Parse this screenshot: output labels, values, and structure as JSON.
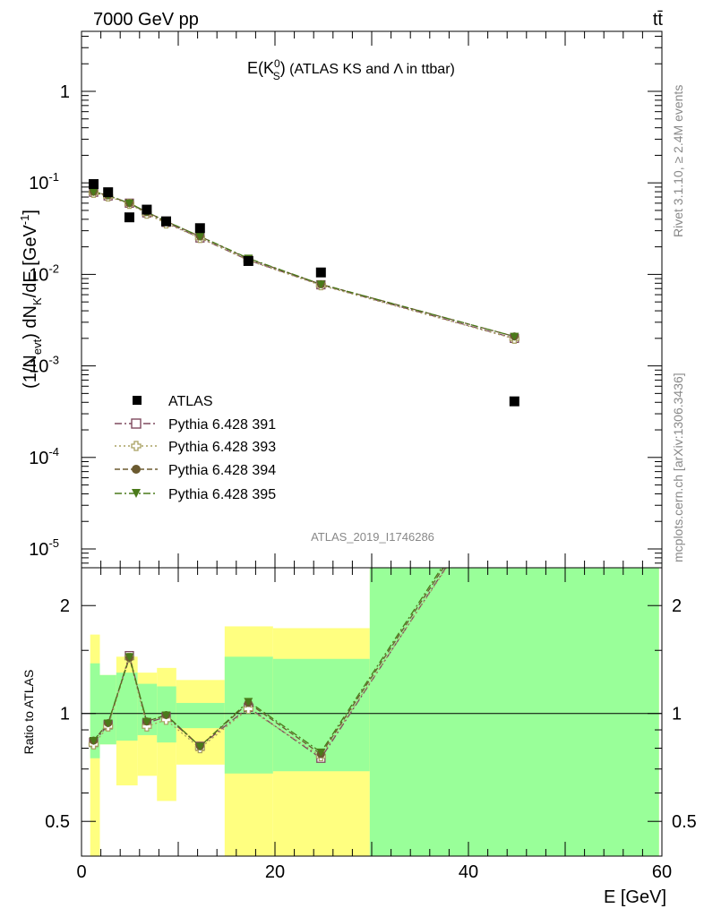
{
  "header": {
    "energy_label": "7000 GeV pp",
    "process_label": "tt̄"
  },
  "side_labels": {
    "rivet": "Rivet 3.1.10, ≥ 2.4M events",
    "mcplots": "mcplots.cern.ch [arXiv:1306.3436]"
  },
  "analysis_tag": "ATLAS_2019_I1746286",
  "colors": {
    "atlas": "#000000",
    "p391": "#7f4a5f",
    "p393": "#a8a060",
    "p394": "#6b5a30",
    "p395": "#4a7a1a",
    "band_inner": "#99ff99",
    "band_outer": "#ffff80"
  },
  "chart_data": [
    {
      "type": "scatter",
      "title_parts": {
        "e": "E(K",
        "sup": "0",
        "sub": "S",
        "close": ")",
        "rest": " (ATLAS KS and Λ in ttbar)"
      },
      "ylabel_parts": {
        "a": "(1/N",
        "b": "evt",
        "c": ") dN",
        "d": "K",
        "e": "/dE [GeV",
        "f": "-1",
        "g": "]"
      },
      "yscale": "log",
      "ylim": [
        7e-06,
        4
      ],
      "xlim": [
        0,
        60
      ],
      "yticklabels": [
        {
          "base": "1",
          "exp": "",
          "v": 1
        },
        {
          "base": "10",
          "exp": "-1",
          "v": 0.1
        },
        {
          "base": "10",
          "exp": "-2",
          "v": 0.01
        },
        {
          "base": "10",
          "exp": "-3",
          "v": 0.001
        },
        {
          "base": "10",
          "exp": "-4",
          "v": 0.0001
        },
        {
          "base": "10",
          "exp": "-5",
          "v": 1e-05
        }
      ],
      "x": [
        1.25,
        2.75,
        4.95,
        6.75,
        8.75,
        12.25,
        17.25,
        24.75,
        44.75
      ],
      "series": [
        {
          "name": "ATLAS",
          "marker": "filled-square",
          "values": [
            0.097,
            0.079,
            0.042,
            0.051,
            0.038,
            0.032,
            0.014,
            0.0105,
            0.00041
          ]
        },
        {
          "name": "Pythia 6.428 391",
          "marker": "open-square",
          "values": [
            0.079,
            0.072,
            0.06,
            0.047,
            0.037,
            0.025,
            0.0143,
            0.0077,
            0.002
          ]
        },
        {
          "name": "Pythia 6.428 393",
          "marker": "open-cross",
          "values": [
            0.078,
            0.071,
            0.059,
            0.046,
            0.036,
            0.025,
            0.0142,
            0.0076,
            0.00198
          ]
        },
        {
          "name": "Pythia 6.428 394",
          "marker": "filled-circle",
          "values": [
            0.08,
            0.073,
            0.06,
            0.048,
            0.038,
            0.026,
            0.0148,
            0.0078,
            0.0021
          ]
        },
        {
          "name": "Pythia 6.428 395",
          "marker": "filled-triangle-down",
          "values": [
            0.08,
            0.073,
            0.06,
            0.048,
            0.038,
            0.026,
            0.015,
            0.0078,
            0.0021
          ]
        }
      ]
    },
    {
      "type": "line",
      "ylabel": "Ratio to ATLAS",
      "xlabel": "E [GeV]",
      "yscale": "log",
      "ylim": [
        0.4,
        2.55
      ],
      "xlim": [
        0,
        60
      ],
      "xticklabels": [
        "0",
        "20",
        "40",
        "60"
      ],
      "yticklabels": [
        "0.5",
        "1",
        "2"
      ],
      "bins": [
        {
          "lo": 0.9,
          "hi": 1.9,
          "inner": [
            0.75,
            1.38
          ],
          "outer": [
            0.36,
            1.66
          ]
        },
        {
          "lo": 1.9,
          "hi": 3.6,
          "inner": [
            0.82,
            1.28
          ],
          "outer": [
            0.82,
            1.28
          ]
        },
        {
          "lo": 3.6,
          "hi": 5.8,
          "inner": [
            0.84,
            1.3
          ],
          "outer": [
            0.63,
            1.44
          ]
        },
        {
          "lo": 5.8,
          "hi": 7.8,
          "inner": [
            0.87,
            1.21
          ],
          "outer": [
            0.67,
            1.3
          ]
        },
        {
          "lo": 7.8,
          "hi": 9.8,
          "inner": [
            0.83,
            1.19
          ],
          "outer": [
            0.57,
            1.34
          ]
        },
        {
          "lo": 9.8,
          "hi": 14.8,
          "inner": [
            0.91,
            1.07
          ],
          "outer": [
            0.72,
            1.24
          ]
        },
        {
          "lo": 14.8,
          "hi": 19.8,
          "inner": [
            0.68,
            1.44
          ],
          "outer": [
            0.3,
            1.75
          ]
        },
        {
          "lo": 19.8,
          "hi": 29.8,
          "inner": [
            0.69,
            1.42
          ],
          "outer": [
            0.3,
            1.73
          ]
        },
        {
          "lo": 29.8,
          "hi": 59.7,
          "inner": [
            0.3,
            3.0
          ],
          "outer": [
            0.3,
            3.0
          ]
        }
      ],
      "series": [
        {
          "name": "Pythia 6.428 391",
          "values": [
            0.83,
            0.93,
            1.45,
            0.94,
            0.98,
            0.81,
            1.04,
            0.75,
            5.0
          ]
        },
        {
          "name": "Pythia 6.428 393",
          "values": [
            0.82,
            0.92,
            1.43,
            0.92,
            0.96,
            0.8,
            1.03,
            0.76,
            4.9
          ]
        },
        {
          "name": "Pythia 6.428 394",
          "values": [
            0.84,
            0.94,
            1.43,
            0.95,
            0.99,
            0.81,
            1.07,
            0.77,
            5.1
          ]
        },
        {
          "name": "Pythia 6.428 395",
          "values": [
            0.84,
            0.94,
            1.44,
            0.95,
            0.99,
            0.81,
            1.08,
            0.78,
            5.2
          ]
        }
      ]
    }
  ]
}
